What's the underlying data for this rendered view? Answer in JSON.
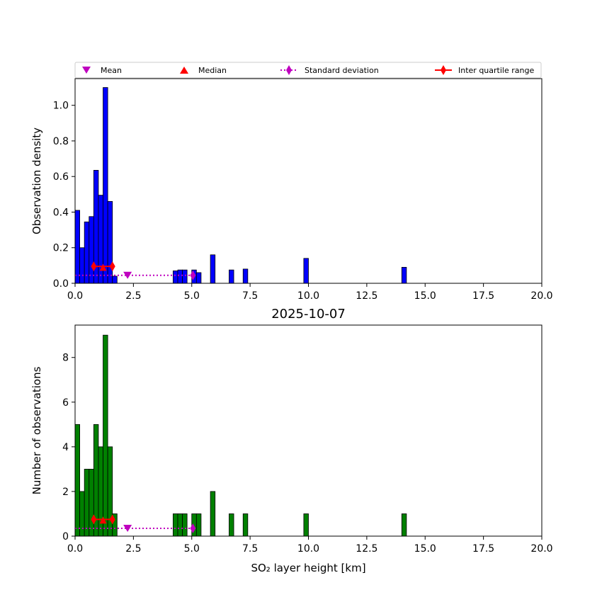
{
  "chart_data": [
    {
      "type": "bar",
      "title": "",
      "xlabel": "",
      "ylabel": "Observation density",
      "xlim": [
        0,
        20
      ],
      "ylim": [
        0,
        1.15
      ],
      "xticks": [
        "0.0",
        "2.5",
        "5.0",
        "7.5",
        "10.0",
        "12.5",
        "15.0",
        "17.5",
        "20.0"
      ],
      "xtick_values": [
        0,
        2.5,
        5,
        7.5,
        10,
        12.5,
        15,
        17.5,
        20
      ],
      "yticks": [
        "0.0",
        "0.2",
        "0.4",
        "0.6",
        "0.8",
        "1.0"
      ],
      "ytick_values": [
        0,
        0.2,
        0.4,
        0.6,
        0.8,
        1.0
      ],
      "bin_width": 0.2,
      "bar_color": "#0000ff",
      "bins": [
        {
          "x0": 0.0,
          "value": 0.41
        },
        {
          "x0": 0.2,
          "value": 0.2
        },
        {
          "x0": 0.4,
          "value": 0.345
        },
        {
          "x0": 0.6,
          "value": 0.375
        },
        {
          "x0": 0.8,
          "value": 0.635
        },
        {
          "x0": 1.0,
          "value": 0.495
        },
        {
          "x0": 1.2,
          "value": 1.1
        },
        {
          "x0": 1.4,
          "value": 0.46
        },
        {
          "x0": 1.6,
          "value": 0.04
        },
        {
          "x0": 4.2,
          "value": 0.07
        },
        {
          "x0": 4.4,
          "value": 0.075
        },
        {
          "x0": 4.6,
          "value": 0.075
        },
        {
          "x0": 5.0,
          "value": 0.075
        },
        {
          "x0": 5.2,
          "value": 0.06
        },
        {
          "x0": 5.8,
          "value": 0.16
        },
        {
          "x0": 6.6,
          "value": 0.075
        },
        {
          "x0": 7.2,
          "value": 0.08
        },
        {
          "x0": 9.8,
          "value": 0.14
        },
        {
          "x0": 14.0,
          "value": 0.09
        }
      ],
      "markers": {
        "mean_x": 2.25,
        "mean_y": 0.045,
        "median_x": 1.2,
        "median_y": 0.09,
        "std_x0": 0.0,
        "std_x1": 5.05,
        "std_y": 0.045,
        "iqr_x0": 0.8,
        "iqr_x1": 1.6,
        "iqr_y": 0.095
      }
    },
    {
      "type": "bar",
      "title": "2025-10-07",
      "xlabel": "SO₂ layer height [km]",
      "ylabel": "Number of observations",
      "xlim": [
        0,
        20
      ],
      "ylim": [
        0,
        9.45
      ],
      "xticks": [
        "0.0",
        "2.5",
        "5.0",
        "7.5",
        "10.0",
        "12.5",
        "15.0",
        "17.5",
        "20.0"
      ],
      "xtick_values": [
        0,
        2.5,
        5,
        7.5,
        10,
        12.5,
        15,
        17.5,
        20
      ],
      "yticks": [
        "0",
        "2",
        "4",
        "6",
        "8"
      ],
      "ytick_values": [
        0,
        2,
        4,
        6,
        8
      ],
      "bin_width": 0.2,
      "bar_color": "#008000",
      "bins": [
        {
          "x0": 0.0,
          "value": 5
        },
        {
          "x0": 0.2,
          "value": 2
        },
        {
          "x0": 0.4,
          "value": 3
        },
        {
          "x0": 0.6,
          "value": 3
        },
        {
          "x0": 0.8,
          "value": 5
        },
        {
          "x0": 1.0,
          "value": 4
        },
        {
          "x0": 1.2,
          "value": 9
        },
        {
          "x0": 1.4,
          "value": 4
        },
        {
          "x0": 1.6,
          "value": 1
        },
        {
          "x0": 4.2,
          "value": 1
        },
        {
          "x0": 4.4,
          "value": 1
        },
        {
          "x0": 4.6,
          "value": 1
        },
        {
          "x0": 5.0,
          "value": 1
        },
        {
          "x0": 5.2,
          "value": 1
        },
        {
          "x0": 5.8,
          "value": 2
        },
        {
          "x0": 6.6,
          "value": 1
        },
        {
          "x0": 7.2,
          "value": 1
        },
        {
          "x0": 9.8,
          "value": 1
        },
        {
          "x0": 14.0,
          "value": 1
        }
      ],
      "markers": {
        "mean_x": 2.25,
        "mean_y": 0.35,
        "median_x": 1.2,
        "median_y": 0.72,
        "std_x0": 0.0,
        "std_x1": 5.05,
        "std_y": 0.35,
        "iqr_x0": 0.8,
        "iqr_x1": 1.6,
        "iqr_y": 0.75
      }
    }
  ],
  "legend": {
    "placement": "top",
    "items": [
      {
        "label": "Mean",
        "marker": "triangle-down",
        "color": "#bf00bf"
      },
      {
        "label": "Median",
        "marker": "triangle-up",
        "color": "#ff0000"
      },
      {
        "label": "Standard deviation",
        "marker": "diamond-dotted-line",
        "color": "#bf00bf"
      },
      {
        "label": "Inter quartile range",
        "marker": "diamond-solid-line",
        "color": "#ff0000"
      }
    ]
  }
}
